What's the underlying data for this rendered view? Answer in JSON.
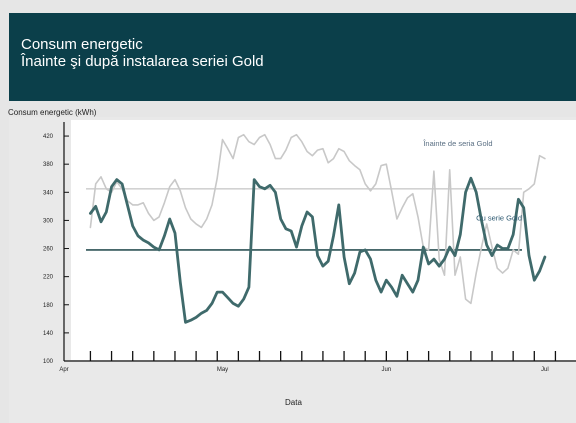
{
  "header": {
    "title_line1": "Consum energetic",
    "title_line2": "Înainte şi după instalarea seriei Gold"
  },
  "chart_data": {
    "type": "line",
    "ylabel": "Consum energetic (kWh)",
    "xlabel": "Data",
    "ylim": [
      100,
      440
    ],
    "y_ticks": [
      100,
      140,
      180,
      220,
      260,
      300,
      340,
      380,
      420
    ],
    "x_range": [
      "2012-04-01",
      "2012-07-05"
    ],
    "x_tick_labels": [
      {
        "date": "2012-04-01",
        "label": "Apr"
      },
      {
        "date": "2012-05-01",
        "label": "May"
      },
      {
        "date": "2012-06-01",
        "label": "Jun"
      },
      {
        "date": "2012-07-01",
        "label": "Jul"
      }
    ],
    "grid": false,
    "series": [
      {
        "name": "Înainte de seria Gold",
        "color": "#c8c8c8",
        "points": [
          [
            "2012-04-06",
            290
          ],
          [
            "2012-04-07",
            352
          ],
          [
            "2012-04-08",
            362
          ],
          [
            "2012-04-09",
            345
          ],
          [
            "2012-04-10",
            340
          ],
          [
            "2012-04-11",
            355
          ],
          [
            "2012-04-12",
            345
          ],
          [
            "2012-04-13",
            328
          ],
          [
            "2012-04-14",
            322
          ],
          [
            "2012-04-15",
            322
          ],
          [
            "2012-04-16",
            325
          ],
          [
            "2012-04-17",
            310
          ],
          [
            "2012-04-18",
            300
          ],
          [
            "2012-04-19",
            305
          ],
          [
            "2012-04-20",
            325
          ],
          [
            "2012-04-21",
            348
          ],
          [
            "2012-04-22",
            358
          ],
          [
            "2012-04-23",
            342
          ],
          [
            "2012-04-24",
            318
          ],
          [
            "2012-04-25",
            302
          ],
          [
            "2012-04-26",
            295
          ],
          [
            "2012-04-27",
            290
          ],
          [
            "2012-04-28",
            302
          ],
          [
            "2012-04-29",
            322
          ],
          [
            "2012-04-30",
            360
          ],
          [
            "2012-05-01",
            415
          ],
          [
            "2012-05-02",
            402
          ],
          [
            "2012-05-03",
            388
          ],
          [
            "2012-05-04",
            418
          ],
          [
            "2012-05-05",
            422
          ],
          [
            "2012-05-06",
            412
          ],
          [
            "2012-05-07",
            408
          ],
          [
            "2012-05-08",
            418
          ],
          [
            "2012-05-09",
            422
          ],
          [
            "2012-05-10",
            408
          ],
          [
            "2012-05-11",
            388
          ],
          [
            "2012-05-12",
            388
          ],
          [
            "2012-05-13",
            400
          ],
          [
            "2012-05-14",
            418
          ],
          [
            "2012-05-15",
            422
          ],
          [
            "2012-05-16",
            412
          ],
          [
            "2012-05-17",
            398
          ],
          [
            "2012-05-18",
            392
          ],
          [
            "2012-05-19",
            400
          ],
          [
            "2012-05-20",
            402
          ],
          [
            "2012-05-21",
            382
          ],
          [
            "2012-05-22",
            388
          ],
          [
            "2012-05-23",
            402
          ],
          [
            "2012-05-24",
            398
          ],
          [
            "2012-05-25",
            385
          ],
          [
            "2012-05-26",
            378
          ],
          [
            "2012-05-27",
            372
          ],
          [
            "2012-05-28",
            352
          ],
          [
            "2012-05-29",
            342
          ],
          [
            "2012-05-30",
            352
          ],
          [
            "2012-05-31",
            378
          ],
          [
            "2012-06-01",
            380
          ],
          [
            "2012-06-02",
            342
          ],
          [
            "2012-06-03",
            302
          ],
          [
            "2012-06-04",
            318
          ],
          [
            "2012-06-05",
            332
          ],
          [
            "2012-06-06",
            338
          ],
          [
            "2012-06-07",
            305
          ],
          [
            "2012-06-08",
            262
          ],
          [
            "2012-06-09",
            258
          ],
          [
            "2012-06-10",
            370
          ],
          [
            "2012-06-11",
            245
          ],
          [
            "2012-06-12",
            222
          ],
          [
            "2012-06-13",
            372
          ],
          [
            "2012-06-14",
            222
          ],
          [
            "2012-06-15",
            248
          ],
          [
            "2012-06-16",
            188
          ],
          [
            "2012-06-17",
            182
          ],
          [
            "2012-06-18",
            225
          ],
          [
            "2012-06-19",
            262
          ],
          [
            "2012-06-20",
            295
          ],
          [
            "2012-06-21",
            262
          ],
          [
            "2012-06-22",
            232
          ],
          [
            "2012-06-23",
            225
          ],
          [
            "2012-06-24",
            232
          ],
          [
            "2012-06-25",
            258
          ],
          [
            "2012-06-26",
            252
          ],
          [
            "2012-06-27",
            340
          ],
          [
            "2012-06-28",
            345
          ],
          [
            "2012-06-29",
            352
          ],
          [
            "2012-06-30",
            392
          ],
          [
            "2012-07-01",
            388
          ]
        ]
      },
      {
        "name": "Cu serie Gold",
        "color": "#3f6a6b",
        "points": [
          [
            "2012-04-06",
            310
          ],
          [
            "2012-04-07",
            320
          ],
          [
            "2012-04-08",
            298
          ],
          [
            "2012-04-09",
            312
          ],
          [
            "2012-04-10",
            348
          ],
          [
            "2012-04-11",
            358
          ],
          [
            "2012-04-12",
            352
          ],
          [
            "2012-04-13",
            322
          ],
          [
            "2012-04-14",
            292
          ],
          [
            "2012-04-15",
            278
          ],
          [
            "2012-04-16",
            272
          ],
          [
            "2012-04-17",
            268
          ],
          [
            "2012-04-18",
            262
          ],
          [
            "2012-04-19",
            258
          ],
          [
            "2012-04-20",
            278
          ],
          [
            "2012-04-21",
            302
          ],
          [
            "2012-04-22",
            282
          ],
          [
            "2012-04-23",
            212
          ],
          [
            "2012-04-24",
            155
          ],
          [
            "2012-04-25",
            158
          ],
          [
            "2012-04-26",
            162
          ],
          [
            "2012-04-27",
            168
          ],
          [
            "2012-04-28",
            172
          ],
          [
            "2012-04-29",
            182
          ],
          [
            "2012-04-30",
            198
          ],
          [
            "2012-05-01",
            198
          ],
          [
            "2012-05-02",
            190
          ],
          [
            "2012-05-03",
            182
          ],
          [
            "2012-05-04",
            178
          ],
          [
            "2012-05-05",
            188
          ],
          [
            "2012-05-06",
            205
          ],
          [
            "2012-05-07",
            358
          ],
          [
            "2012-05-08",
            348
          ],
          [
            "2012-05-09",
            345
          ],
          [
            "2012-05-10",
            350
          ],
          [
            "2012-05-11",
            340
          ],
          [
            "2012-05-12",
            302
          ],
          [
            "2012-05-13",
            288
          ],
          [
            "2012-05-14",
            285
          ],
          [
            "2012-05-15",
            262
          ],
          [
            "2012-05-16",
            292
          ],
          [
            "2012-05-17",
            312
          ],
          [
            "2012-05-18",
            305
          ],
          [
            "2012-05-19",
            250
          ],
          [
            "2012-05-20",
            235
          ],
          [
            "2012-05-21",
            242
          ],
          [
            "2012-05-22",
            278
          ],
          [
            "2012-05-23",
            322
          ],
          [
            "2012-05-24",
            248
          ],
          [
            "2012-05-25",
            210
          ],
          [
            "2012-05-26",
            225
          ],
          [
            "2012-05-27",
            255
          ],
          [
            "2012-05-28",
            258
          ],
          [
            "2012-05-29",
            245
          ],
          [
            "2012-05-30",
            215
          ],
          [
            "2012-05-31",
            198
          ],
          [
            "2012-06-01",
            215
          ],
          [
            "2012-06-02",
            205
          ],
          [
            "2012-06-03",
            192
          ],
          [
            "2012-06-04",
            222
          ],
          [
            "2012-06-05",
            210
          ],
          [
            "2012-06-06",
            198
          ],
          [
            "2012-06-07",
            215
          ],
          [
            "2012-06-08",
            262
          ],
          [
            "2012-06-09",
            238
          ],
          [
            "2012-06-10",
            245
          ],
          [
            "2012-06-11",
            235
          ],
          [
            "2012-06-12",
            245
          ],
          [
            "2012-06-13",
            262
          ],
          [
            "2012-06-14",
            250
          ],
          [
            "2012-06-15",
            280
          ],
          [
            "2012-06-16",
            340
          ],
          [
            "2012-06-17",
            360
          ],
          [
            "2012-06-18",
            340
          ],
          [
            "2012-06-19",
            300
          ],
          [
            "2012-06-20",
            265
          ],
          [
            "2012-06-21",
            250
          ],
          [
            "2012-06-22",
            265
          ],
          [
            "2012-06-23",
            260
          ],
          [
            "2012-06-24",
            260
          ],
          [
            "2012-06-25",
            280
          ],
          [
            "2012-06-26",
            330
          ],
          [
            "2012-06-27",
            318
          ],
          [
            "2012-06-28",
            250
          ],
          [
            "2012-06-29",
            215
          ],
          [
            "2012-06-30",
            228
          ],
          [
            "2012-07-01",
            248
          ]
        ]
      }
    ],
    "reference_lines": [
      {
        "series": "Înainte de seria Gold",
        "value": 345,
        "color": "#d2d2d2"
      },
      {
        "series": "Cu serie Gold",
        "value": 258,
        "color": "#2e5356"
      }
    ],
    "annotations": [
      {
        "text": "Înainte de seria Gold",
        "date": "2012-06-08",
        "y": 406
      },
      {
        "text": "Cu serie Gold",
        "date": "2012-06-18",
        "y": 300
      }
    ]
  }
}
